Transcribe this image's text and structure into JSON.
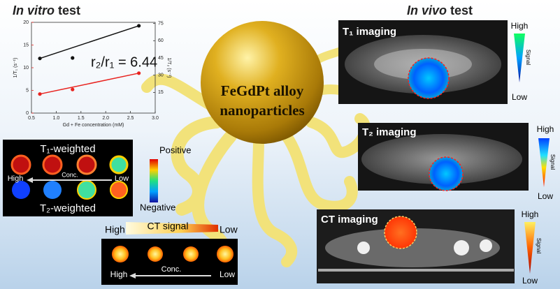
{
  "chart_data": {
    "type": "scatter",
    "x": [
      0.67,
      1.33,
      2.67
    ],
    "series": [
      {
        "color": "#e8231f",
        "values": [
          4.2,
          5.2,
          8.8
        ]
      },
      {
        "color": "#111111",
        "axis": "y2",
        "values": [
          44.6,
          45,
          73
        ]
      }
    ],
    "xlim": [
      0.5,
      3.0
    ],
    "xticks": [
      0.5,
      {
        "value": 1.0,
        "label": "1.0"
      },
      1.5,
      {
        "value": 2.0,
        "label": "2.0"
      },
      2.5,
      {
        "value": 3.0,
        "label": "3.0"
      }
    ],
    "ylim": [
      0,
      20
    ],
    "yticks": [
      0,
      5,
      10,
      15,
      20
    ],
    "y2lim": [
      -3,
      76
    ],
    "y2ticks": [
      15,
      30,
      45,
      60,
      75
    ],
    "x_label": "Gd + Fe concentration (mM)",
    "y_label": "1/T₁ (s⁻¹)",
    "y2_label": "1/T₂ (s⁻¹)",
    "annotation": "r₂/r₁ = 6.44"
  },
  "in_vitro_title": {
    "italic": "In vitro",
    "rest": "test"
  },
  "in_vivo_title": {
    "italic": "In vivo",
    "rest": "test"
  },
  "center_label": [
    "FeGdPt alloy",
    "nanoparticles"
  ],
  "t1_imaging": {
    "label": "T₁ imaging",
    "high": "High",
    "signal": "Signal",
    "low": "Low"
  },
  "t2_imaging": {
    "label": "T₂ imaging",
    "high": "High",
    "signal": "Signal",
    "low": "Low"
  },
  "ct_imaging": {
    "label": "CT imaging",
    "high": "High",
    "signal": "Signal",
    "low": "Low"
  },
  "phantom_mri": {
    "t1_label": "T₁-weighted",
    "t2_label": "T₂-weighted",
    "high": "High",
    "conc": "Conc.",
    "low": "Low",
    "positive": "Positive",
    "negative": "Negative"
  },
  "phantom_ct": {
    "signal_label": "CT signal",
    "signal_high": "High",
    "signal_low": "Low",
    "high": "High",
    "conc": "Conc.",
    "low": "Low"
  }
}
